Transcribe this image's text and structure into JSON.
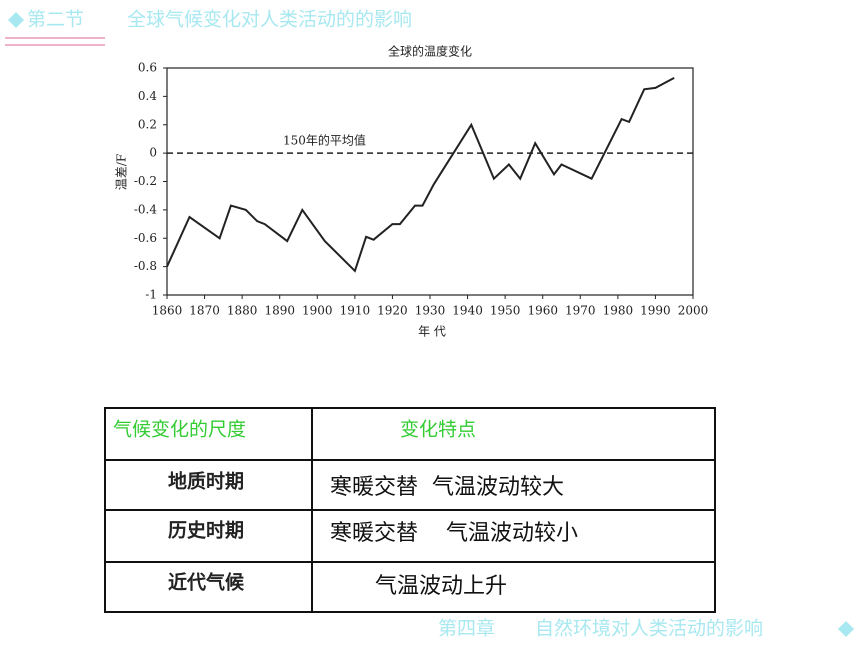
{
  "header": {
    "section": "第二节",
    "title": "全球气候变化对人类活动的的影响"
  },
  "chart_data": {
    "type": "line",
    "title": "全球的温度变化",
    "y_label": "温差/F",
    "x_label": "年 代",
    "annotation": "150年的平均值",
    "reference_value": 0,
    "color": "#222222",
    "x": [
      1860,
      1866,
      1874,
      1877,
      1881,
      1884,
      1886,
      1892,
      1896,
      1902,
      1910,
      1913,
      1915,
      1920,
      1922,
      1926,
      1928,
      1931,
      1941,
      1947,
      1951,
      1954,
      1958,
      1963,
      1965,
      1973,
      1981,
      1983,
      1987,
      1990,
      1995
    ],
    "values": [
      -0.8,
      -0.45,
      -0.6,
      -0.37,
      -0.4,
      -0.48,
      -0.5,
      -0.62,
      -0.4,
      -0.62,
      -0.83,
      -0.59,
      -0.61,
      -0.5,
      -0.5,
      -0.37,
      -0.37,
      -0.22,
      0.2,
      -0.18,
      -0.08,
      -0.18,
      0.07,
      -0.15,
      -0.08,
      -0.18,
      0.24,
      0.22,
      0.45,
      0.46,
      0.53
    ],
    "xlim": [
      1860,
      2000
    ],
    "ylim": [
      -1,
      0.6
    ],
    "xticks": [
      1860,
      1870,
      1880,
      1890,
      1900,
      1910,
      1920,
      1930,
      1940,
      1950,
      1960,
      1970,
      1980,
      1990,
      2000
    ],
    "yticks": [
      -1,
      -0.8,
      -0.6,
      -0.4,
      -0.2,
      0,
      0.2,
      0.4,
      0.6
    ]
  },
  "table": {
    "header": [
      "气候变化的尺度",
      "变化特点"
    ],
    "rows": [
      [
        "地质时期",
        "寒暖交替  气温波动较大"
      ],
      [
        "历史时期",
        "寒暖交替    气温波动较小"
      ],
      [
        "近代气候",
        "气温波动上升"
      ]
    ]
  },
  "footer": {
    "chapter": "第四章",
    "title": "自然环境对人类活动的影响"
  }
}
